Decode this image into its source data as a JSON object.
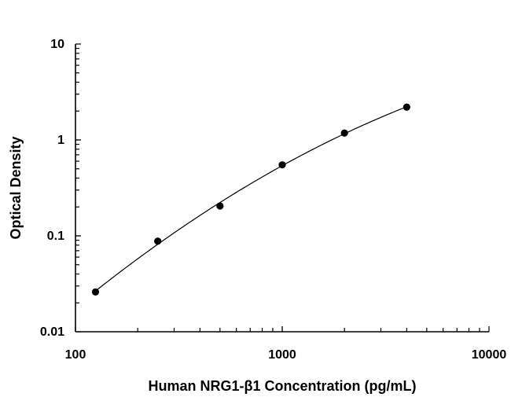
{
  "chart_data": {
    "type": "scatter",
    "title": "",
    "xlabel": "Human NRG1-β1 Concentration (pg/mL)",
    "ylabel": "Optical Density",
    "xscale": "log",
    "yscale": "log",
    "xlim": [
      100,
      10000
    ],
    "ylim": [
      0.01,
      10
    ],
    "x_tick_labels": [
      "100",
      "1000",
      "10000"
    ],
    "y_tick_labels": [
      "0.01",
      "0.1",
      "1",
      "10"
    ],
    "grid": false,
    "legend": "none",
    "fit_curve": true,
    "marker_color": "#000000",
    "series": [
      {
        "x": [
          125,
          250,
          500,
          1000,
          2000,
          4000
        ],
        "y": [
          0.026,
          0.088,
          0.205,
          0.55,
          1.18,
          2.2
        ]
      }
    ]
  }
}
